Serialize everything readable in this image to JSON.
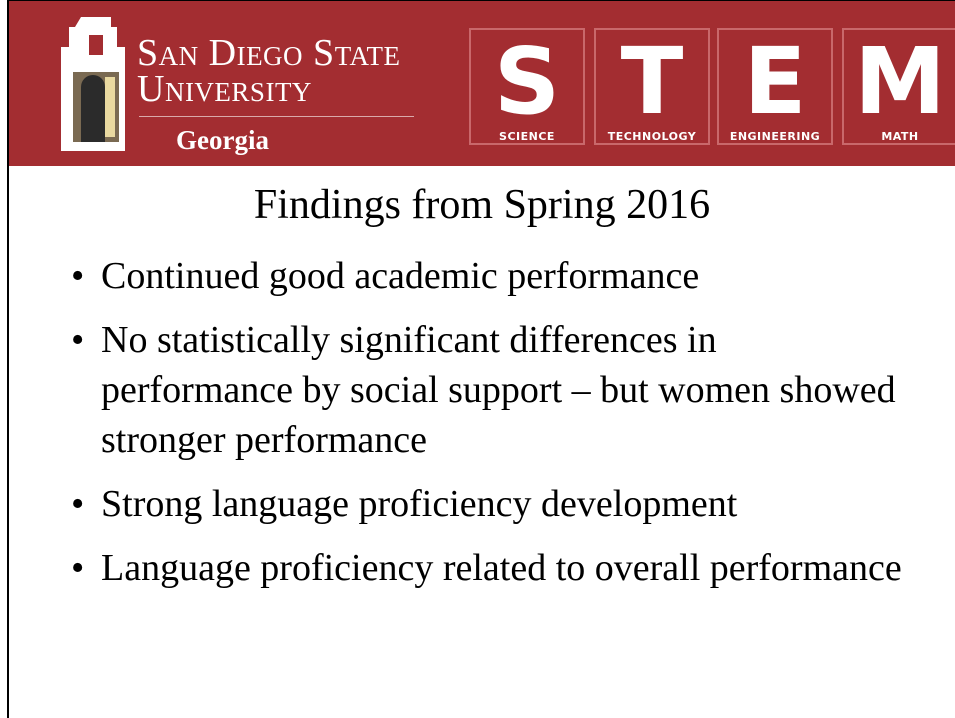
{
  "header": {
    "university": [
      "San Diego State",
      "University"
    ],
    "campus": "Georgia",
    "stem": [
      {
        "letter": "S",
        "label": "SCIENCE"
      },
      {
        "letter": "T",
        "label": "TECHNOLOGY"
      },
      {
        "letter": "E",
        "label": "ENGINEERING"
      },
      {
        "letter": "M",
        "label": "MATH"
      }
    ]
  },
  "title": "Findings from Spring 2016",
  "bullets": [
    "Continued good academic performance",
    "No statistically significant differences in performance by social support – but women showed stronger performance",
    "Strong language proficiency development",
    "Language proficiency related to overall performance"
  ]
}
